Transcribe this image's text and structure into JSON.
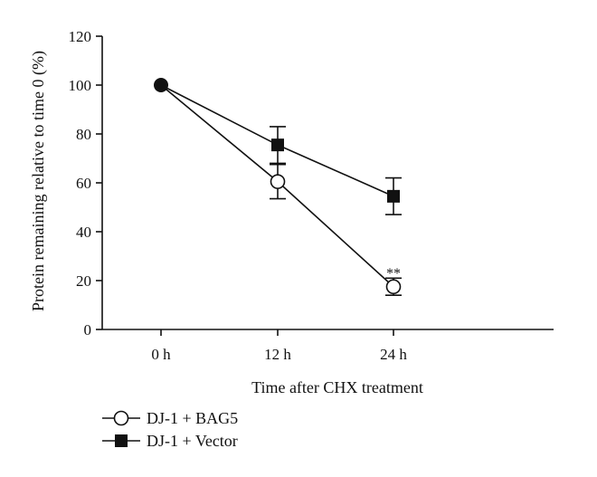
{
  "chart_data": {
    "type": "line",
    "categories": [
      "0 h",
      "12 h",
      "24 h"
    ],
    "series": [
      {
        "name": "DJ-1 + BAG5",
        "values": [
          100,
          60.5,
          17.5
        ],
        "errors": [
          0,
          7,
          3.5
        ],
        "marker": "open-circle",
        "color": "#111111"
      },
      {
        "name": "DJ-1 + Vector",
        "values": [
          100,
          75.5,
          54.5
        ],
        "errors": [
          0,
          7.5,
          7.5
        ],
        "marker": "filled-square",
        "color": "#111111"
      }
    ],
    "xlabel": "Time after CHX treatment",
    "ylabel": "Protein remaining relative to time 0 (%)",
    "ylim": [
      0,
      120
    ],
    "yticks": [
      0,
      20,
      40,
      60,
      80,
      100,
      120
    ],
    "annotations": [
      {
        "text": "**",
        "category": "24 h",
        "value": 17.5
      }
    ],
    "legend_placement": "bottom-left",
    "grid": false
  }
}
